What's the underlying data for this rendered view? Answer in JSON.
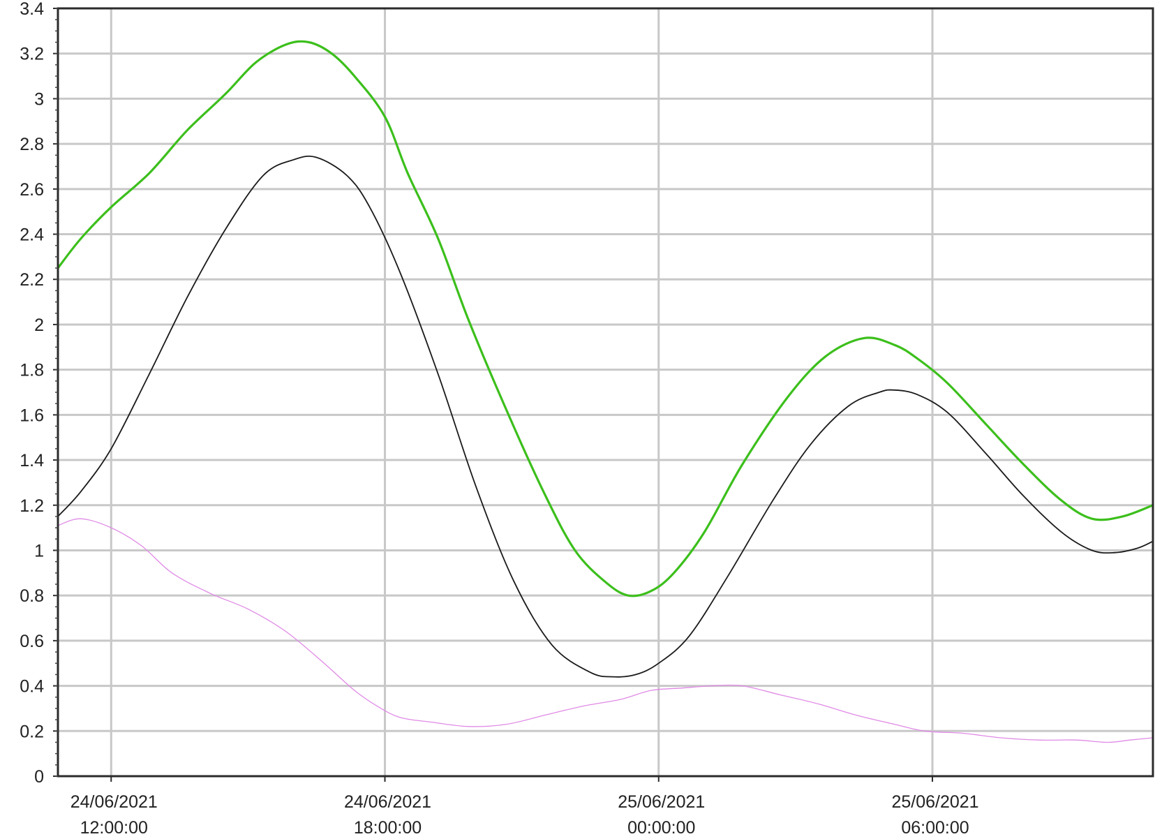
{
  "chart_data": {
    "type": "line",
    "title": "",
    "xlabel": "",
    "ylabel": "",
    "x_start": "24/06/2021 10:50:00",
    "x_end": "25/06/2021 10:50:00",
    "ylim": [
      0,
      3.4
    ],
    "yticks": [
      "0",
      "0.2",
      "0.4",
      "0.6",
      "0.8",
      "1",
      "1.2",
      "1.4",
      "1.6",
      "1.8",
      "2",
      "2.2",
      "2.4",
      "2.6",
      "2.8",
      "3",
      "3.2",
      "3.4"
    ],
    "xticks": [
      {
        "date": "24/06/2021",
        "time": "12:00:00"
      },
      {
        "date": "24/06/2021",
        "time": "18:00:00"
      },
      {
        "date": "25/06/2021",
        "time": "00:00:00"
      },
      {
        "date": "25/06/2021",
        "time": "06:00:00"
      }
    ],
    "grid": true,
    "legend": "none",
    "series": [
      {
        "color": "#3cbf1c",
        "points": [
          [
            "24/06/2021 10:50",
            2.25
          ],
          [
            "24/06/2021 11:20",
            2.38
          ],
          [
            "24/06/2021 12:00",
            2.52
          ],
          [
            "24/06/2021 12:50",
            2.67
          ],
          [
            "24/06/2021 13:40",
            2.86
          ],
          [
            "24/06/2021 14:30",
            3.02
          ],
          [
            "24/06/2021 15:10",
            3.16
          ],
          [
            "24/06/2021 15:50",
            3.24
          ],
          [
            "24/06/2021 16:20",
            3.25
          ],
          [
            "24/06/2021 16:50",
            3.2
          ],
          [
            "24/06/2021 17:20",
            3.1
          ],
          [
            "24/06/2021 18:00",
            2.92
          ],
          [
            "24/06/2021 18:30",
            2.67
          ],
          [
            "24/06/2021 19:10",
            2.38
          ],
          [
            "24/06/2021 19:50",
            2.02
          ],
          [
            "24/06/2021 20:40",
            1.62
          ],
          [
            "24/06/2021 21:30",
            1.25
          ],
          [
            "24/06/2021 22:10",
            1.0
          ],
          [
            "24/06/2021 22:50",
            0.86
          ],
          [
            "24/06/2021 23:20",
            0.8
          ],
          [
            "24/06/2021 23:50",
            0.82
          ],
          [
            "25/06/2021 00:20",
            0.9
          ],
          [
            "25/06/2021 01:00",
            1.08
          ],
          [
            "25/06/2021 01:50",
            1.38
          ],
          [
            "25/06/2021 02:50",
            1.68
          ],
          [
            "25/06/2021 03:40",
            1.86
          ],
          [
            "25/06/2021 04:30",
            1.94
          ],
          [
            "25/06/2021 05:10",
            1.91
          ],
          [
            "25/06/2021 05:40",
            1.85
          ],
          [
            "25/06/2021 06:20",
            1.74
          ],
          [
            "25/06/2021 07:10",
            1.56
          ],
          [
            "25/06/2021 08:00",
            1.38
          ],
          [
            "25/06/2021 08:50",
            1.22
          ],
          [
            "25/06/2021 09:30",
            1.14
          ],
          [
            "25/06/2021 10:10",
            1.15
          ],
          [
            "25/06/2021 10:50",
            1.2
          ]
        ]
      },
      {
        "color": "#1a1a1a",
        "points": [
          [
            "24/06/2021 10:50",
            1.15
          ],
          [
            "24/06/2021 11:20",
            1.26
          ],
          [
            "24/06/2021 12:00",
            1.45
          ],
          [
            "24/06/2021 12:50",
            1.78
          ],
          [
            "24/06/2021 13:40",
            2.12
          ],
          [
            "24/06/2021 14:30",
            2.42
          ],
          [
            "24/06/2021 15:20",
            2.66
          ],
          [
            "24/06/2021 16:00",
            2.73
          ],
          [
            "24/06/2021 16:30",
            2.74
          ],
          [
            "24/06/2021 17:10",
            2.66
          ],
          [
            "24/06/2021 17:40",
            2.52
          ],
          [
            "24/06/2021 18:20",
            2.23
          ],
          [
            "24/06/2021 19:10",
            1.78
          ],
          [
            "24/06/2021 20:00",
            1.28
          ],
          [
            "24/06/2021 20:50",
            0.86
          ],
          [
            "24/06/2021 21:40",
            0.58
          ],
          [
            "24/06/2021 22:30",
            0.46
          ],
          [
            "24/06/2021 23:00",
            0.44
          ],
          [
            "24/06/2021 23:30",
            0.45
          ],
          [
            "25/06/2021 00:00",
            0.5
          ],
          [
            "25/06/2021 00:40",
            0.62
          ],
          [
            "25/06/2021 01:30",
            0.88
          ],
          [
            "25/06/2021 02:30",
            1.22
          ],
          [
            "25/06/2021 03:20",
            1.47
          ],
          [
            "25/06/2021 04:10",
            1.64
          ],
          [
            "25/06/2021 04:50",
            1.7
          ],
          [
            "25/06/2021 05:10",
            1.71
          ],
          [
            "25/06/2021 05:40",
            1.69
          ],
          [
            "25/06/2021 06:20",
            1.61
          ],
          [
            "25/06/2021 07:10",
            1.43
          ],
          [
            "25/06/2021 08:00",
            1.24
          ],
          [
            "25/06/2021 08:50",
            1.08
          ],
          [
            "25/06/2021 09:30",
            1.0
          ],
          [
            "25/06/2021 10:00",
            0.99
          ],
          [
            "25/06/2021 10:30",
            1.01
          ],
          [
            "25/06/2021 10:50",
            1.04
          ]
        ]
      },
      {
        "color": "#e08ae6",
        "points": [
          [
            "24/06/2021 10:50",
            1.11
          ],
          [
            "24/06/2021 11:20",
            1.14
          ],
          [
            "24/06/2021 12:00",
            1.1
          ],
          [
            "24/06/2021 12:40",
            1.02
          ],
          [
            "24/06/2021 13:20",
            0.9
          ],
          [
            "24/06/2021 14:10",
            0.81
          ],
          [
            "24/06/2021 15:00",
            0.74
          ],
          [
            "24/06/2021 15:50",
            0.64
          ],
          [
            "24/06/2021 16:40",
            0.5
          ],
          [
            "24/06/2021 17:20",
            0.38
          ],
          [
            "24/06/2021 17:50",
            0.31
          ],
          [
            "24/06/2021 18:20",
            0.26
          ],
          [
            "24/06/2021 19:00",
            0.24
          ],
          [
            "24/06/2021 19:50",
            0.22
          ],
          [
            "24/06/2021 20:40",
            0.23
          ],
          [
            "24/06/2021 21:30",
            0.27
          ],
          [
            "24/06/2021 22:20",
            0.31
          ],
          [
            "24/06/2021 23:10",
            0.34
          ],
          [
            "24/06/2021 23:50",
            0.38
          ],
          [
            "25/06/2021 00:30",
            0.39
          ],
          [
            "25/06/2021 01:10",
            0.4
          ],
          [
            "25/06/2021 01:50",
            0.4
          ],
          [
            "25/06/2021 02:40",
            0.36
          ],
          [
            "25/06/2021 03:30",
            0.32
          ],
          [
            "25/06/2021 04:20",
            0.27
          ],
          [
            "25/06/2021 05:10",
            0.23
          ],
          [
            "25/06/2021 05:50",
            0.2
          ],
          [
            "25/06/2021 06:40",
            0.19
          ],
          [
            "25/06/2021 07:30",
            0.17
          ],
          [
            "25/06/2021 08:20",
            0.16
          ],
          [
            "25/06/2021 09:10",
            0.16
          ],
          [
            "25/06/2021 09:50",
            0.15
          ],
          [
            "25/06/2021 10:20",
            0.16
          ],
          [
            "25/06/2021 10:50",
            0.17
          ]
        ]
      }
    ]
  }
}
